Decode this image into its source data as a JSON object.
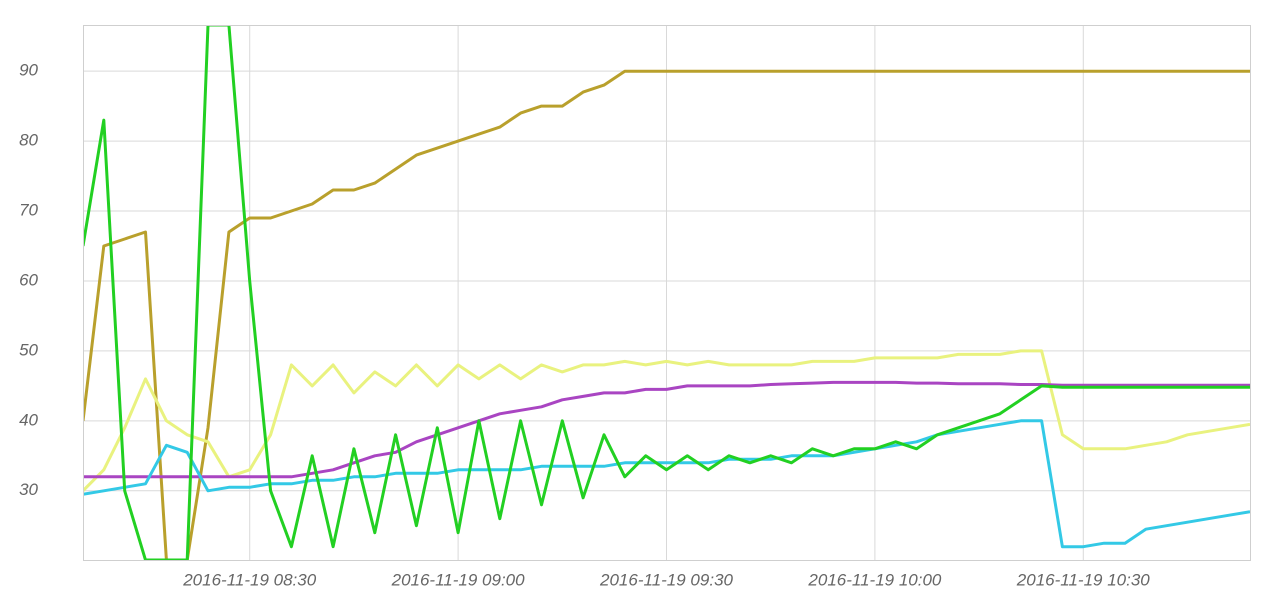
{
  "chart_data": {
    "type": "line",
    "x": [
      "2016-11-19 08:06",
      "2016-11-19 08:09",
      "2016-11-19 08:12",
      "2016-11-19 08:15",
      "2016-11-19 08:18",
      "2016-11-19 08:21",
      "2016-11-19 08:24",
      "2016-11-19 08:27",
      "2016-11-19 08:30",
      "2016-11-19 08:33",
      "2016-11-19 08:36",
      "2016-11-19 08:39",
      "2016-11-19 08:42",
      "2016-11-19 08:45",
      "2016-11-19 08:48",
      "2016-11-19 08:51",
      "2016-11-19 08:54",
      "2016-11-19 08:57",
      "2016-11-19 09:00",
      "2016-11-19 09:03",
      "2016-11-19 09:06",
      "2016-11-19 09:09",
      "2016-11-19 09:12",
      "2016-11-19 09:15",
      "2016-11-19 09:18",
      "2016-11-19 09:21",
      "2016-11-19 09:24",
      "2016-11-19 09:27",
      "2016-11-19 09:30",
      "2016-11-19 09:33",
      "2016-11-19 09:36",
      "2016-11-19 09:39",
      "2016-11-19 09:42",
      "2016-11-19 09:45",
      "2016-11-19 09:48",
      "2016-11-19 09:51",
      "2016-11-19 09:54",
      "2016-11-19 09:57",
      "2016-11-19 10:00",
      "2016-11-19 10:03",
      "2016-11-19 10:06",
      "2016-11-19 10:09",
      "2016-11-19 10:12",
      "2016-11-19 10:15",
      "2016-11-19 10:18",
      "2016-11-19 10:21",
      "2016-11-19 10:24",
      "2016-11-19 10:27",
      "2016-11-19 10:30",
      "2016-11-19 10:33",
      "2016-11-19 10:36",
      "2016-11-19 10:39",
      "2016-11-19 10:42",
      "2016-11-19 10:45",
      "2016-11-19 10:48",
      "2016-11-19 10:51",
      "2016-11-19 10:54"
    ],
    "series": [
      {
        "color": "#b9a02c",
        "values": [
          40,
          65,
          66,
          67,
          20.1,
          20.1,
          39,
          67,
          69,
          69,
          70,
          71,
          73,
          73,
          74,
          76,
          78,
          79,
          80,
          81,
          82,
          84,
          85,
          85,
          87,
          88,
          90,
          90,
          90,
          90,
          90,
          90,
          90,
          90,
          90,
          90,
          90,
          90,
          90,
          90,
          90,
          90,
          90,
          90,
          90,
          90,
          90,
          90,
          90,
          90,
          90,
          90,
          90,
          90,
          90,
          90,
          90
        ]
      },
      {
        "color": "#e9f27f",
        "values": [
          30,
          33,
          39,
          46,
          40,
          38,
          37,
          32,
          33,
          38,
          48,
          45,
          48,
          44,
          47,
          45,
          48,
          45,
          48,
          46,
          48,
          46,
          48,
          47,
          48,
          48,
          48.5,
          48,
          48.5,
          48,
          48.5,
          48,
          48,
          48,
          48,
          48.5,
          48.5,
          48.5,
          49,
          49,
          49,
          49,
          49.5,
          49.5,
          49.5,
          50,
          50,
          38,
          36,
          36,
          36,
          36.5,
          37,
          38,
          38.5,
          39,
          39.5
        ]
      },
      {
        "color": "#a945c2",
        "values": [
          32,
          32,
          32,
          32,
          32,
          32,
          32,
          32,
          32,
          32,
          32,
          32.5,
          33,
          34,
          35,
          35.5,
          37,
          38,
          39,
          40,
          41,
          41.5,
          42,
          43,
          43.5,
          44,
          44,
          44.5,
          44.5,
          45,
          45,
          45,
          45,
          45.2,
          45.3,
          45.4,
          45.5,
          45.5,
          45.5,
          45.5,
          45.4,
          45.4,
          45.3,
          45.3,
          45.3,
          45.2,
          45.2,
          45.1,
          45.1,
          45.1,
          45.1,
          45.1,
          45.1,
          45.1,
          45.1,
          45.1,
          45.1
        ]
      },
      {
        "color": "#33c9e6",
        "values": [
          29.5,
          30,
          30.5,
          31,
          36.5,
          35.5,
          30,
          30.5,
          30.5,
          31,
          31,
          31.5,
          31.5,
          32,
          32,
          32.5,
          32.5,
          32.5,
          33,
          33,
          33,
          33,
          33.5,
          33.5,
          33.5,
          33.5,
          34,
          34,
          34,
          34,
          34,
          34.5,
          34.5,
          34.5,
          35,
          35,
          35,
          35.5,
          36,
          36.5,
          37,
          38,
          38.5,
          39,
          39.5,
          40,
          40,
          22,
          22,
          22.5,
          22.5,
          24.5,
          25,
          25.5,
          26,
          26.5,
          27
        ]
      },
      {
        "color": "#22d022",
        "values": [
          65,
          83,
          30,
          20.1,
          20.1,
          20.1,
          96.6,
          96.6,
          60,
          30,
          22,
          35,
          22,
          36,
          24,
          38,
          25,
          39,
          24,
          40,
          26,
          40,
          28,
          40,
          29,
          38,
          32,
          35,
          33,
          35,
          33,
          35,
          34,
          35,
          34,
          36,
          35,
          36,
          36,
          37,
          36,
          38,
          39,
          40,
          41,
          43,
          45,
          44.8,
          44.8,
          44.8,
          44.8,
          44.8,
          44.8,
          44.8,
          44.8,
          44.8,
          44.8
        ]
      }
    ],
    "xlim": [
      "2016-11-19 08:06",
      "2016-11-19 10:54"
    ],
    "xticks": [
      "2016-11-19 08:30",
      "2016-11-19 09:00",
      "2016-11-19 09:30",
      "2016-11-19 10:00",
      "2016-11-19 10:30"
    ],
    "ylim": [
      20.1,
      96.6
    ],
    "yticks": [
      30,
      40,
      50,
      60,
      70,
      80,
      90
    ],
    "grid": true
  }
}
